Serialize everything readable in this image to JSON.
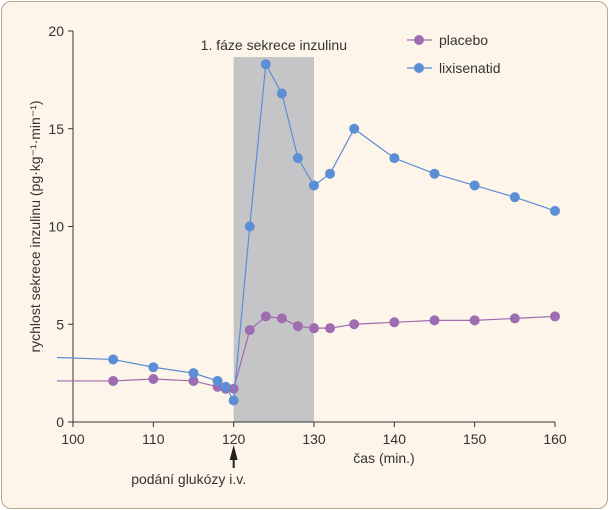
{
  "chart_data": {
    "type": "line",
    "xlabel": "čas (min.)",
    "ylabel": "rychlost sekrece inzulinu (pg·kg⁻¹·min⁻¹)",
    "xlim": [
      100,
      160
    ],
    "ylim": [
      0,
      20
    ],
    "xticks": [
      100,
      110,
      120,
      130,
      140,
      150,
      160
    ],
    "yticks": [
      0,
      5,
      10,
      15,
      20
    ],
    "grid": false,
    "legend_position": "top-right",
    "shaded_region": {
      "x": [
        120,
        130
      ],
      "label": "1. fáze sekrece inzulinu"
    },
    "annotation": {
      "x": 120,
      "text": "podání glukózy i.v."
    },
    "series": [
      {
        "name": "placebo",
        "color": "#9e6cb0",
        "x": [
          98,
          105,
          110,
          115,
          118,
          119,
          120,
          122,
          124,
          126,
          128,
          130,
          132,
          135,
          140,
          145,
          150,
          155,
          160
        ],
        "y": [
          2.1,
          2.1,
          2.2,
          2.1,
          1.8,
          1.7,
          1.7,
          4.7,
          5.4,
          5.3,
          4.9,
          4.8,
          4.8,
          5.0,
          5.1,
          5.2,
          5.2,
          5.3,
          5.4
        ],
        "markers_from_index": 1
      },
      {
        "name": "lixisenatid",
        "color": "#5b8ed4",
        "x": [
          98,
          105,
          110,
          115,
          118,
          119,
          120,
          122,
          124,
          126,
          128,
          130,
          132,
          135,
          140,
          145,
          150,
          155,
          160
        ],
        "y": [
          3.3,
          3.2,
          2.8,
          2.5,
          2.1,
          1.8,
          1.1,
          10.0,
          18.3,
          16.8,
          13.5,
          12.1,
          12.7,
          15.0,
          13.5,
          12.7,
          12.1,
          11.5,
          10.8
        ],
        "markers_from_index": 1
      }
    ]
  }
}
